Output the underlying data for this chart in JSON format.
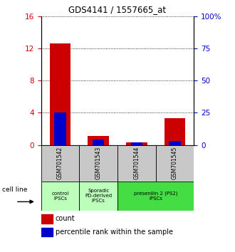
{
  "title": "GDS4141 / 1557665_at",
  "samples": [
    "GSM701542",
    "GSM701543",
    "GSM701544",
    "GSM701545"
  ],
  "red_values": [
    12.6,
    1.15,
    0.28,
    3.3
  ],
  "blue_values_pct": [
    25.5,
    4.2,
    2.2,
    3.0
  ],
  "left_ylim": [
    0,
    16
  ],
  "left_yticks": [
    0,
    4,
    8,
    12,
    16
  ],
  "right_ylim": [
    0,
    100
  ],
  "right_yticks": [
    0,
    25,
    50,
    75,
    100
  ],
  "right_yticklabels": [
    "0",
    "25",
    "50",
    "75",
    "100%"
  ],
  "red_color": "#cc0000",
  "blue_color": "#0000cc",
  "bar_width": 0.55,
  "sample_bg_color": "#c8c8c8",
  "group_info": [
    {
      "label": "control\nIPSCs",
      "color": "#bbffbb",
      "span": [
        0,
        0
      ]
    },
    {
      "label": "Sporadic\nPD-derived\niPSCs",
      "color": "#bbffbb",
      "span": [
        1,
        1
      ]
    },
    {
      "label": "presenilin 2 (PS2)\niPSCs",
      "color": "#44dd44",
      "span": [
        2,
        3
      ]
    }
  ],
  "legend_red_label": "count",
  "legend_blue_label": "percentile rank within the sample",
  "cell_line_label": "cell line"
}
